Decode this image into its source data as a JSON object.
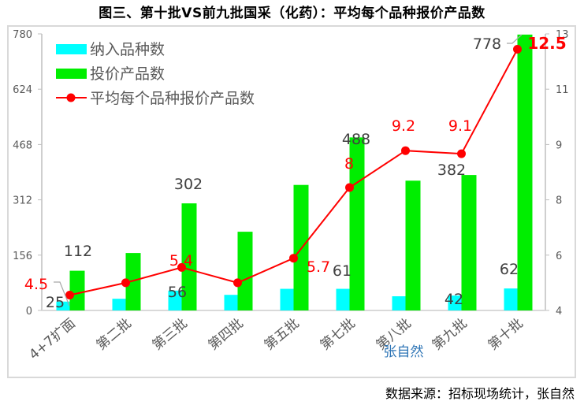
{
  "title": "图三、第十批VS前九批国采（化药）：平均每个品种报价产品数",
  "source": "数据来源：招标现场统计，张自然",
  "watermark": "张自然",
  "colors": {
    "included": "#00ffff",
    "bid": "#00ee00",
    "line": "#ff0000",
    "axis": "#bfbfbf",
    "frame": "#d9d9d9"
  },
  "legend": [
    {
      "label": "纳入品种数",
      "type": "bar",
      "color": "#00ffff"
    },
    {
      "label": "投价产品数",
      "type": "bar",
      "color": "#00ee00"
    },
    {
      "label": "平均每个品种报价产品数",
      "type": "line",
      "color": "#ff0000"
    }
  ],
  "chart_data": {
    "type": "bar",
    "title": "图三、第十批VS前九批国采（化药）：平均每个品种报价产品数",
    "categories": [
      "4+7扩面",
      "第二批",
      "第三批",
      "第四批",
      "第五批",
      "第七批",
      "第八批",
      "第九批",
      "第十批"
    ],
    "series": [
      {
        "name": "纳入品种数",
        "type": "bar",
        "axis": "left",
        "values": [
          25,
          33,
          56,
          44,
          61,
          61,
          40,
          42,
          62
        ],
        "labels": [
          "25",
          "",
          "56",
          "",
          "",
          "61",
          "",
          "42",
          "62"
        ]
      },
      {
        "name": "投价产品数",
        "type": "bar",
        "axis": "left",
        "values": [
          112,
          162,
          302,
          222,
          354,
          488,
          366,
          382,
          778
        ],
        "labels": [
          "112",
          "",
          "302",
          "",
          "",
          "488",
          "",
          "382",
          "778"
        ]
      },
      {
        "name": "平均每个品种报价产品数",
        "type": "line",
        "axis": "right",
        "values": [
          4.5,
          4.9,
          5.4,
          4.9,
          5.7,
          8,
          9.2,
          9.1,
          12.5
        ],
        "labels": [
          "4.5",
          "",
          "5.4",
          "",
          "5.7",
          "8",
          "9.2",
          "9.1",
          "12.5"
        ]
      }
    ],
    "left_axis": {
      "ticks": [
        "0",
        "156",
        "312",
        "468",
        "624",
        "780"
      ],
      "ylim": [
        0,
        780
      ]
    },
    "right_axis": {
      "ticks": [
        "4",
        "6",
        "8",
        "9",
        "11",
        "13"
      ],
      "ylim": [
        4,
        13
      ]
    },
    "legend_position": "top-left",
    "grid": false
  }
}
